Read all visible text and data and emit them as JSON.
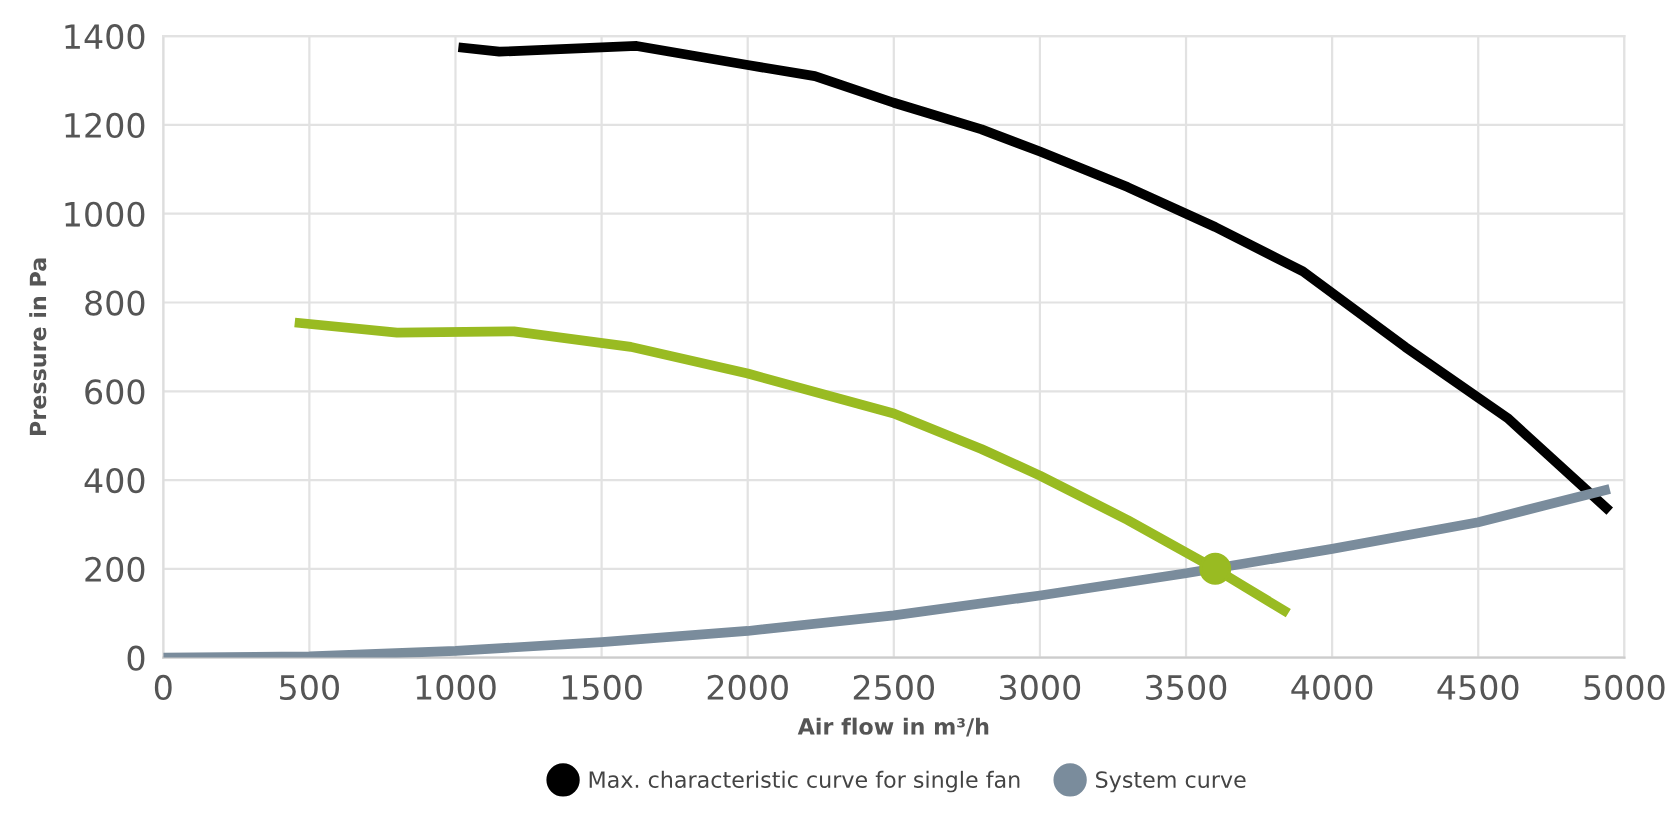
{
  "chart_data": {
    "type": "line",
    "xlabel": "Air flow in m³/h",
    "ylabel": "Pressure in Pa",
    "xlim": [
      0,
      5000
    ],
    "xticks": [
      0,
      500,
      1000,
      1500,
      2000,
      2500,
      3000,
      3500,
      4000,
      4500,
      5000
    ],
    "ylim": [
      0,
      1400
    ],
    "yticks": [
      0,
      200,
      400,
      600,
      800,
      1000,
      1200,
      1400
    ],
    "grid": true,
    "legend": "bottom",
    "series": [
      {
        "name": "Max. characteristic curve for single fan",
        "color": "#000000",
        "x": [
          1010,
          1150,
          1620,
          2000,
          2230,
          2500,
          2800,
          3000,
          3300,
          3600,
          3900,
          4250,
          4600,
          4950
        ],
        "values": [
          1375,
          1365,
          1378,
          1335,
          1310,
          1250,
          1190,
          1140,
          1060,
          970,
          870,
          700,
          540,
          330
        ]
      },
      {
        "color": "#99bb22",
        "x": [
          450,
          800,
          1200,
          1600,
          2000,
          2500,
          2800,
          3000,
          3300,
          3600,
          3700,
          3850
        ],
        "values": [
          755,
          732,
          735,
          700,
          640,
          550,
          470,
          410,
          310,
          200,
          160,
          100
        ]
      },
      {
        "name": "System curve",
        "color": "#7a8c9c",
        "x": [
          0,
          500,
          1000,
          1500,
          2000,
          2500,
          3000,
          3500,
          4000,
          4500,
          4950
        ],
        "values": [
          0,
          3,
          15,
          35,
          60,
          95,
          140,
          190,
          245,
          305,
          380
        ]
      },
      {
        "type": "scatter",
        "color": "#99bb22",
        "marker": "circle",
        "x": [
          3600
        ],
        "values": [
          200
        ]
      }
    ]
  }
}
